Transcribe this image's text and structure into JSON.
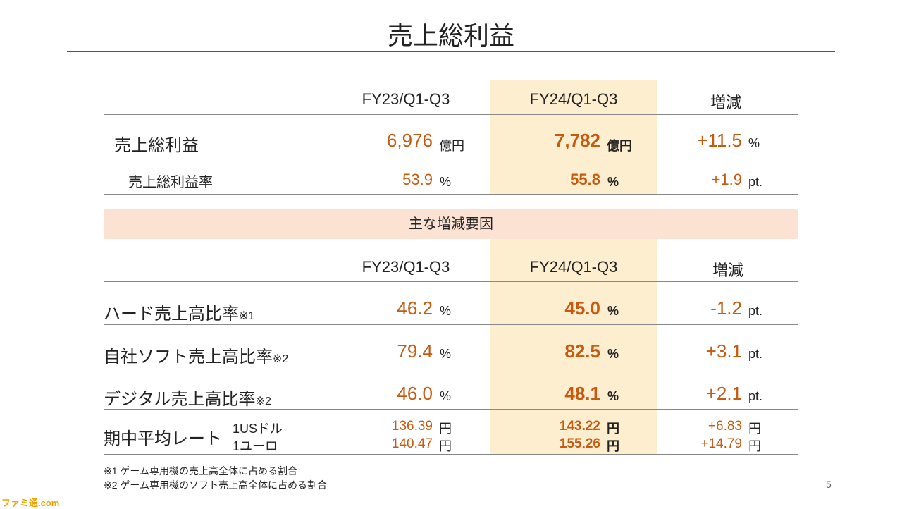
{
  "title": "売上総利益",
  "top_table": {
    "headers": [
      "FY23/Q1-Q3",
      "FY24/Q1-Q3",
      "増減"
    ],
    "rows": [
      {
        "label": "売上総利益",
        "prev": "6,976",
        "prev_unit": "億円",
        "curr": "7,782",
        "curr_unit": "億円",
        "diff": "+11.5",
        "diff_unit": "%"
      },
      {
        "label": "売上総利益率",
        "prev": "53.9",
        "prev_unit": "%",
        "curr": "55.8",
        "curr_unit": "%",
        "diff": "+1.9",
        "diff_unit": "pt."
      }
    ]
  },
  "band_title": "主な増減要因",
  "factors_table": {
    "headers": [
      "FY23/Q1-Q3",
      "FY24/Q1-Q3",
      "増減"
    ],
    "rows": [
      {
        "label": "ハード売上高比率",
        "note": "※1",
        "prev": "46.2",
        "prev_unit": "%",
        "curr": "45.0",
        "curr_unit": "%",
        "diff": "-1.2",
        "diff_unit": "pt."
      },
      {
        "label": "自社ソフト売上高比率",
        "note": "※2",
        "prev": "79.4",
        "prev_unit": "%",
        "curr": "82.5",
        "curr_unit": "%",
        "diff": "+3.1",
        "diff_unit": "pt."
      },
      {
        "label": "デジタル売上高比率",
        "note": "※2",
        "prev": "46.0",
        "prev_unit": "%",
        "curr": "48.1",
        "curr_unit": "%",
        "diff": "+2.1",
        "diff_unit": "pt."
      }
    ],
    "rate": {
      "label": "期中平均レート",
      "items": [
        {
          "currency": "1USドル",
          "prev": "136.39",
          "curr": "143.22",
          "diff": "+6.83",
          "unit": "円"
        },
        {
          "currency": "1ユーロ",
          "prev": "140.47",
          "curr": "155.26",
          "diff": "+14.79",
          "unit": "円"
        }
      ]
    }
  },
  "footnotes": [
    "※1 ゲーム専用機の売上高全体に占める割合",
    "※2 ゲーム専用機のソフト売上高全体に占める割合"
  ],
  "page_number": "5",
  "watermark": "ファミ通.com",
  "colors": {
    "accent": "#c55a11",
    "highlight": "#fdeecf",
    "band": "#fbe2d2"
  }
}
